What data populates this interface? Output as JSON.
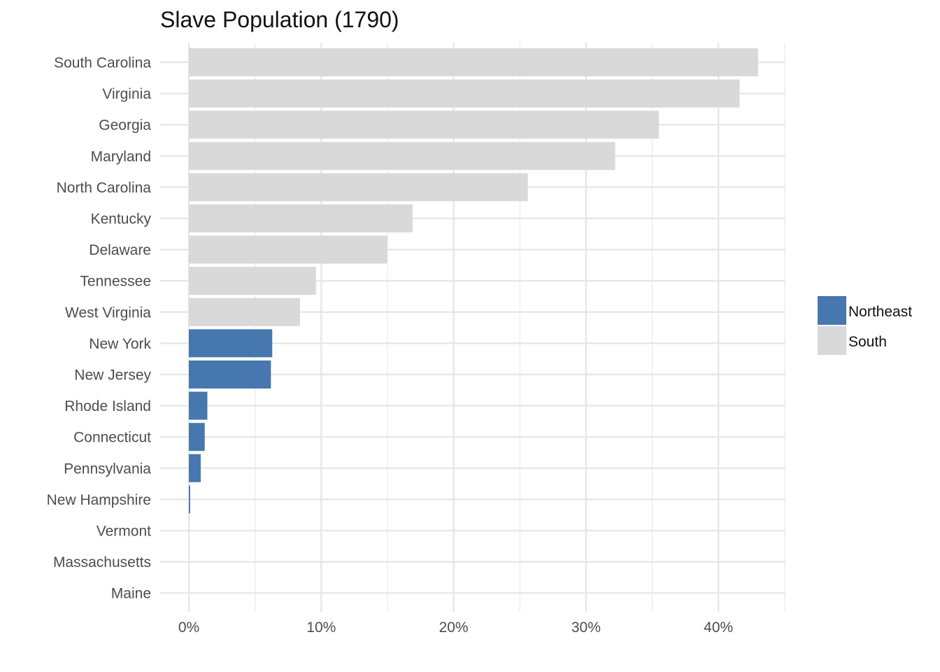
{
  "chart_data": {
    "type": "bar",
    "orientation": "horizontal",
    "title": "Slave Population (1790)",
    "xlabel": "",
    "ylabel": "",
    "xlim": [
      0,
      45
    ],
    "x_ticks": [
      0,
      10,
      20,
      30,
      40
    ],
    "x_tick_labels": [
      "0%",
      "10%",
      "20%",
      "30%",
      "40%"
    ],
    "grid": true,
    "legend_position": "right",
    "legend": [
      {
        "name": "Northeast",
        "color": "#4677ae"
      },
      {
        "name": "South",
        "color": "#d9d9d9"
      }
    ],
    "categories": [
      "South Carolina",
      "Virginia",
      "Georgia",
      "Maryland",
      "North Carolina",
      "Kentucky",
      "Delaware",
      "Tennessee",
      "West Virginia",
      "New York",
      "New Jersey",
      "Rhode Island",
      "Connecticut",
      "Pennsylvania",
      "New Hampshire",
      "Vermont",
      "Massachusetts",
      "Maine"
    ],
    "values": [
      43.0,
      41.6,
      35.5,
      32.2,
      25.6,
      16.9,
      15.0,
      9.6,
      8.4,
      6.3,
      6.2,
      1.4,
      1.2,
      0.9,
      0.1,
      0,
      0,
      0
    ],
    "groups": [
      "South",
      "South",
      "South",
      "South",
      "South",
      "South",
      "South",
      "South",
      "South",
      "Northeast",
      "Northeast",
      "Northeast",
      "Northeast",
      "Northeast",
      "Northeast",
      "Northeast",
      "Northeast",
      "Northeast"
    ]
  }
}
